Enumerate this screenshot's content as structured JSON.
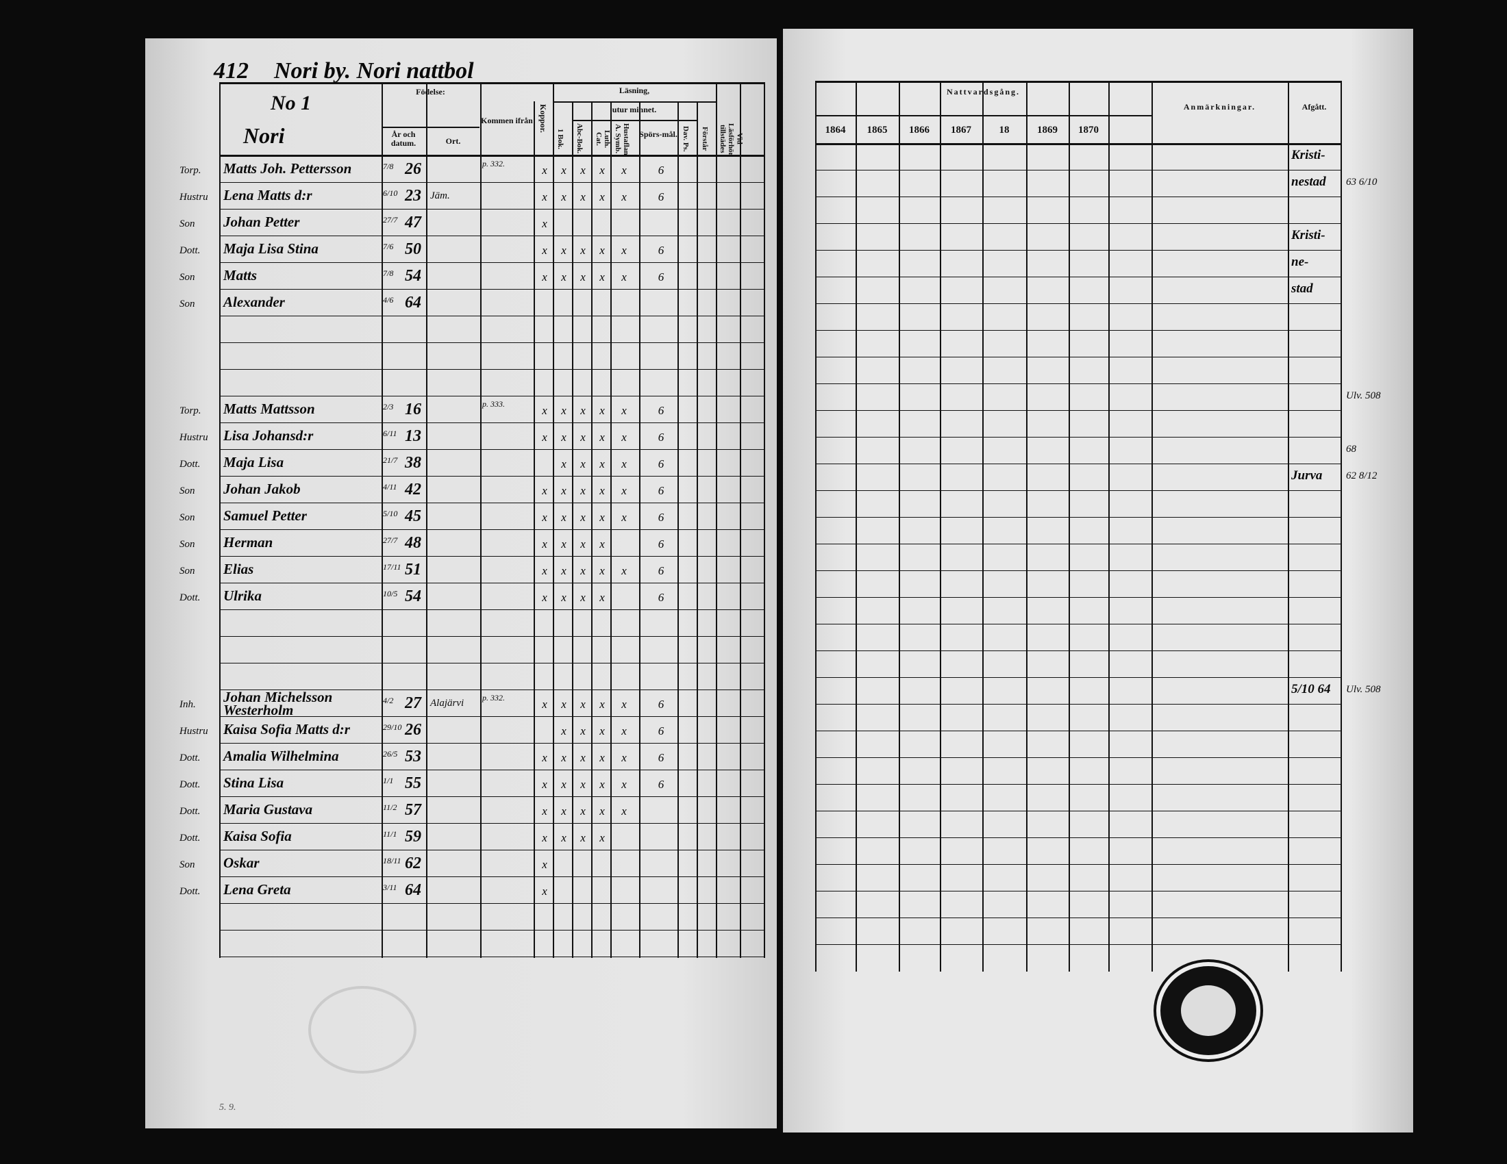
{
  "left_page": {
    "page_number": "412",
    "title": "Nori by. Nori nattbol",
    "household_no": "No 1",
    "village": "Nori",
    "headers": {
      "fodelse": "Födelse:",
      "ar_datum": "År och datum.",
      "ort": "Ort.",
      "kommen_ifran": "Kommen ifrån",
      "koppor": "Koppor.",
      "lasning": "Läsning,",
      "utur_minnet": "utur minnet.",
      "bok": "1 Bok.",
      "abc": "Abc-Bok.",
      "luth": "Luth. Cat.",
      "hustafl": "Hustaflan A. Symb.",
      "spors": "Spörs-mål.",
      "dav": "Dav. Ps.",
      "forstar": "Förstår",
      "vid_lasforhor": "Vid Läsförhör tillstädes"
    },
    "entries": [
      {
        "row": 0,
        "rel": "Torp.",
        "name": "Matts Joh. Pettersson",
        "date": "7/8",
        "year": "26",
        "ort": "",
        "from": "p. 332.",
        "marks": [
          "x",
          "x",
          "x",
          "x",
          "x",
          "6"
        ]
      },
      {
        "row": 1,
        "rel": "Hustru",
        "name": "Lena Matts d:r",
        "date": "6/10",
        "year": "23",
        "ort": "Jäm.",
        "from": "",
        "marks": [
          "x",
          "x",
          "x",
          "x",
          "x",
          "6"
        ]
      },
      {
        "row": 2,
        "rel": "Son",
        "name": "Johan Petter",
        "date": "27/7",
        "year": "47",
        "ort": "",
        "from": "",
        "marks": [
          "x",
          "",
          "",
          "",
          "",
          ""
        ]
      },
      {
        "row": 3,
        "rel": "Dott.",
        "name": "Maja Lisa Stina",
        "date": "7/6",
        "year": "50",
        "ort": "",
        "from": "",
        "marks": [
          "x",
          "x",
          "x",
          "x",
          "x",
          "6"
        ]
      },
      {
        "row": 4,
        "rel": "Son",
        "name": "Matts",
        "date": "7/8",
        "year": "54",
        "ort": "",
        "from": "",
        "marks": [
          "x",
          "x",
          "x",
          "x",
          "x",
          "6"
        ]
      },
      {
        "row": 5,
        "rel": "Son",
        "name": "Alexander",
        "date": "4/6",
        "year": "64",
        "ort": "",
        "from": "",
        "marks": [
          "",
          "",
          "",
          "",
          "",
          ""
        ]
      },
      {
        "row": 9,
        "rel": "Torp.",
        "name": "Matts Mattsson",
        "date": "2/3",
        "year": "16",
        "ort": "",
        "from": "p. 333.",
        "marks": [
          "x",
          "x",
          "x",
          "x",
          "x",
          "6"
        ]
      },
      {
        "row": 10,
        "rel": "Hustru",
        "name": "Lisa Johansd:r",
        "date": "6/11",
        "year": "13",
        "ort": "",
        "from": "",
        "marks": [
          "x",
          "x",
          "x",
          "x",
          "x",
          "6"
        ]
      },
      {
        "row": 11,
        "rel": "Dott.",
        "name": "Maja Lisa",
        "date": "21/7",
        "year": "38",
        "ort": "",
        "from": "",
        "marks": [
          "",
          "x",
          "x",
          "x",
          "x",
          "6"
        ]
      },
      {
        "row": 12,
        "rel": "Son",
        "name": "Johan Jakob",
        "date": "4/11",
        "year": "42",
        "ort": "",
        "from": "",
        "marks": [
          "x",
          "x",
          "x",
          "x",
          "x",
          "6"
        ]
      },
      {
        "row": 13,
        "rel": "Son",
        "name": "Samuel Petter",
        "date": "5/10",
        "year": "45",
        "ort": "",
        "from": "",
        "marks": [
          "x",
          "x",
          "x",
          "x",
          "x",
          "6"
        ]
      },
      {
        "row": 14,
        "rel": "Son",
        "name": "Herman",
        "date": "27/7",
        "year": "48",
        "ort": "",
        "from": "",
        "marks": [
          "x",
          "x",
          "x",
          "x",
          "",
          "6"
        ]
      },
      {
        "row": 15,
        "rel": "Son",
        "name": "Elias",
        "date": "17/11",
        "year": "51",
        "ort": "",
        "from": "",
        "marks": [
          "x",
          "x",
          "x",
          "x",
          "x",
          "6"
        ]
      },
      {
        "row": 16,
        "rel": "Dott.",
        "name": "Ulrika",
        "date": "10/5",
        "year": "54",
        "ort": "",
        "from": "",
        "marks": [
          "x",
          "x",
          "x",
          "x",
          "",
          "6"
        ]
      },
      {
        "row": 20,
        "rel": "Inh.",
        "name": "Johan Michelsson Westerholm",
        "date": "4/2",
        "year": "27",
        "ort": "Alajärvi",
        "from": "p. 332.",
        "marks": [
          "x",
          "x",
          "x",
          "x",
          "x",
          "6"
        ]
      },
      {
        "row": 21,
        "rel": "Hustru",
        "name": "Kaisa Sofia Matts d:r",
        "date": "29/10",
        "year": "26",
        "ort": "",
        "from": "",
        "marks": [
          "",
          "x",
          "x",
          "x",
          "x",
          "6"
        ]
      },
      {
        "row": 22,
        "rel": "Dott.",
        "name": "Amalia Wilhelmina",
        "date": "26/5",
        "year": "53",
        "ort": "",
        "from": "",
        "marks": [
          "x",
          "x",
          "x",
          "x",
          "x",
          "6"
        ]
      },
      {
        "row": 23,
        "rel": "Dott.",
        "name": "Stina Lisa",
        "date": "1/1",
        "year": "55",
        "ort": "",
        "from": "",
        "marks": [
          "x",
          "x",
          "x",
          "x",
          "x",
          "6"
        ]
      },
      {
        "row": 24,
        "rel": "Dott.",
        "name": "Maria Gustava",
        "date": "11/2",
        "year": "57",
        "ort": "",
        "from": "",
        "marks": [
          "x",
          "x",
          "x",
          "x",
          "x",
          ""
        ]
      },
      {
        "row": 25,
        "rel": "Dott.",
        "name": "Kaisa Sofia",
        "date": "11/1",
        "year": "59",
        "ort": "",
        "from": "",
        "marks": [
          "x",
          "x",
          "x",
          "x",
          "",
          ""
        ]
      },
      {
        "row": 26,
        "rel": "Son",
        "name": "Oskar",
        "date": "18/11",
        "year": "62",
        "ort": "",
        "from": "",
        "marks": [
          "x",
          "",
          "",
          "",
          "",
          ""
        ]
      },
      {
        "row": 27,
        "rel": "Dott.",
        "name": "Lena Greta",
        "date": "3/11",
        "year": "64",
        "ort": "",
        "from": "",
        "marks": [
          "x",
          "",
          "",
          "",
          "",
          ""
        ]
      }
    ],
    "footer_note": "5. 9."
  },
  "right_page": {
    "header_title": "Nattvardsgång.",
    "years": [
      "1864",
      "1865",
      "1866",
      "1867",
      "18",
      "1869",
      "1870"
    ],
    "anmarkningar": "Anmärkningar.",
    "afgatt": "Afgått.",
    "afgatt_entries": [
      {
        "row": 0,
        "text": "Kristi-"
      },
      {
        "row": 1,
        "text": "nestad"
      },
      {
        "row": 3,
        "text": "Kristi-"
      },
      {
        "row": 4,
        "text": "ne-"
      },
      {
        "row": 5,
        "text": "stad"
      },
      {
        "row": 12,
        "text": "Jurva"
      },
      {
        "row": 20,
        "text": "5/10 64"
      }
    ],
    "margin_notes": [
      {
        "row": 1,
        "text": "63 6/10"
      },
      {
        "row": 9,
        "text": "Ulv. 508"
      },
      {
        "row": 11,
        "text": "68"
      },
      {
        "row": 12,
        "text": "62 8/12"
      },
      {
        "row": 20,
        "text": "Ulv. 508"
      }
    ]
  }
}
